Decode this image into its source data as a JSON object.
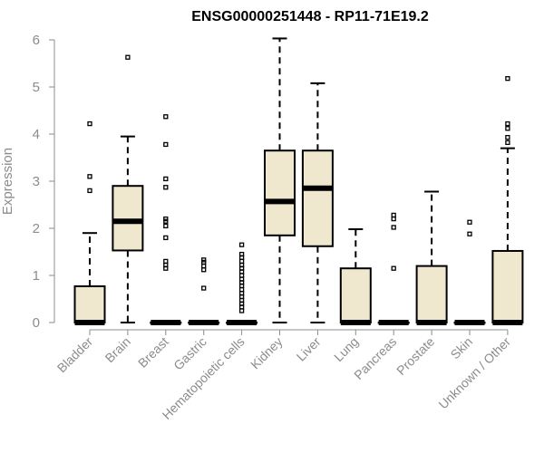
{
  "chart_data": {
    "type": "box",
    "title": "ENSG00000251448 - RP11-71E19.2",
    "ylabel": "Expression",
    "xlabel": "",
    "ylim": [
      0,
      6
    ],
    "yticks": [
      0,
      1,
      2,
      3,
      4,
      5,
      6
    ],
    "grid": false,
    "box_fill": "#efe8cf",
    "box_stroke": "#000000",
    "categories": [
      "Bladder",
      "Brain",
      "Breast",
      "Gastric",
      "Hematopoietic cells",
      "Kidney",
      "Liver",
      "Lung",
      "Pancreas",
      "Prostate",
      "Skin",
      "Unknown / Other"
    ],
    "boxes": [
      {
        "q1": 0,
        "median": 0,
        "q3": 0.77,
        "whisker_low": 0,
        "whisker_high": 1.9,
        "outliers": [
          2.8,
          3.1,
          4.22
        ]
      },
      {
        "q1": 1.53,
        "median": 2.15,
        "q3": 2.9,
        "whisker_low": 0,
        "whisker_high": 3.95,
        "outliers": [
          5.63
        ]
      },
      {
        "q1": 0,
        "median": 0,
        "q3": 0,
        "whisker_low": 0,
        "whisker_high": 0,
        "outliers": [
          1.15,
          1.22,
          1.3,
          1.8,
          2.05,
          2.15,
          2.2,
          2.87,
          3.05,
          3.78,
          4.37
        ]
      },
      {
        "q1": 0,
        "median": 0,
        "q3": 0,
        "whisker_low": 0,
        "whisker_high": 0,
        "outliers": [
          0.73,
          1.12,
          1.2,
          1.28,
          1.33
        ]
      },
      {
        "q1": 0,
        "median": 0,
        "q3": 0,
        "whisker_low": 0,
        "whisker_high": 0,
        "outliers": [
          0.25,
          0.33,
          0.4,
          0.47,
          0.55,
          0.62,
          0.7,
          0.78,
          0.85,
          0.92,
          1.0,
          1.08,
          1.15,
          1.22,
          1.3,
          1.38,
          1.45,
          1.65
        ]
      },
      {
        "q1": 1.85,
        "median": 2.57,
        "q3": 3.65,
        "whisker_low": 0,
        "whisker_high": 6.03,
        "outliers": []
      },
      {
        "q1": 1.62,
        "median": 2.85,
        "q3": 3.65,
        "whisker_low": 0,
        "whisker_high": 5.08,
        "outliers": []
      },
      {
        "q1": 0,
        "median": 0,
        "q3": 1.15,
        "whisker_low": 0,
        "whisker_high": 1.98,
        "outliers": []
      },
      {
        "q1": 0,
        "median": 0,
        "q3": 0,
        "whisker_low": 0,
        "whisker_high": 0,
        "outliers": [
          1.15,
          2.02,
          2.2,
          2.28
        ]
      },
      {
        "q1": 0,
        "median": 0,
        "q3": 1.2,
        "whisker_low": 0,
        "whisker_high": 2.78,
        "outliers": []
      },
      {
        "q1": 0,
        "median": 0,
        "q3": 0,
        "whisker_low": 0,
        "whisker_high": 0,
        "outliers": [
          1.88,
          2.13
        ]
      },
      {
        "q1": 0,
        "median": 0,
        "q3": 1.52,
        "whisker_low": 0,
        "whisker_high": 3.7,
        "outliers": [
          3.82,
          3.93,
          4.12,
          4.22,
          5.18
        ]
      }
    ]
  }
}
